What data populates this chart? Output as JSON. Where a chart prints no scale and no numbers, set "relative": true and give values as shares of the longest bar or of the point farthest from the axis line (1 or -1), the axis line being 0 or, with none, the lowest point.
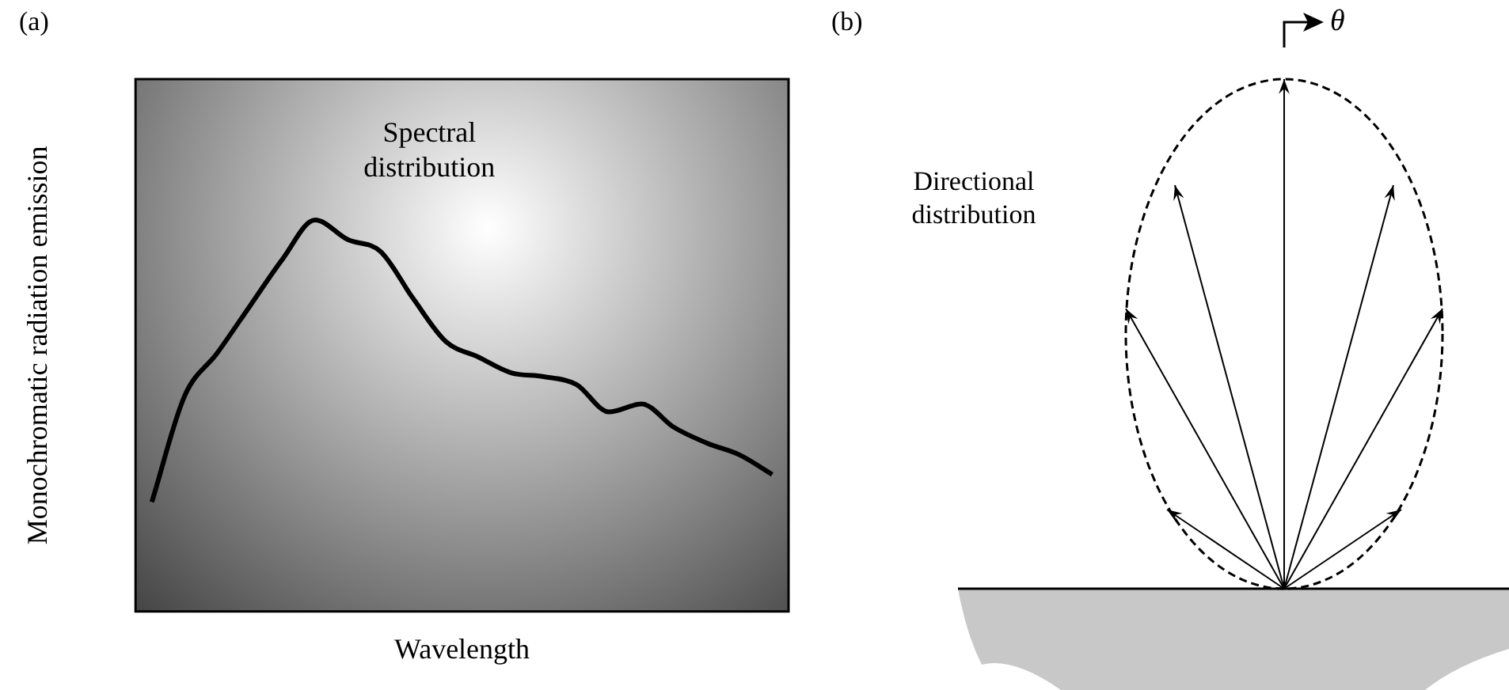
{
  "chart_data": [
    {
      "type": "line",
      "relative": true,
      "xlabel": "Wavelength",
      "ylabel": "Monochromatic radiation emission",
      "annotations": [
        "(a)",
        "Spectral distribution"
      ],
      "categories": [
        null,
        null,
        null,
        null,
        null,
        null,
        null,
        null,
        null,
        null,
        null,
        null,
        null,
        null,
        null,
        null,
        null,
        null,
        null,
        null
      ],
      "series": [
        {
          "color": "#000000",
          "values": [
            0.28,
            0.55,
            0.66,
            0.78,
            0.9,
            1,
            0.95,
            0.92,
            0.8,
            0.69,
            0.65,
            0.61,
            0.6,
            0.58,
            0.51,
            0.53,
            0.47,
            0.43,
            0.4,
            0.35
          ]
        }
      ],
      "tick_labels": false,
      "grid": false,
      "legend": false,
      "marker": "none",
      "line_style": "solid"
    },
    {
      "type": "other",
      "annotations": [
        "(b)",
        "Directional distribution",
        "θ"
      ]
    }
  ]
}
